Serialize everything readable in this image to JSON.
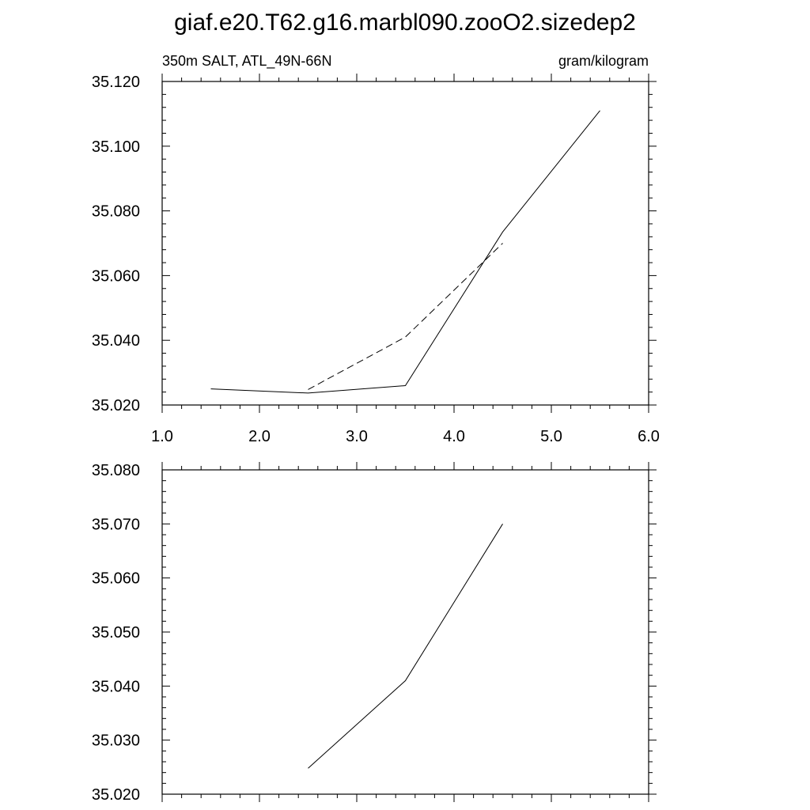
{
  "figure": {
    "title": "giaf.e20.T62.g16.marbl090.zooO2.sizedep2"
  },
  "chart_data": [
    {
      "type": "line",
      "subtitle_left": "350m SALT, ATL_49N-66N",
      "subtitle_right": "gram/kilogram",
      "xlim": [
        1.0,
        6.0
      ],
      "ylim": [
        35.02,
        35.12
      ],
      "xticks": [
        1.0,
        2.0,
        3.0,
        4.0,
        5.0,
        6.0
      ],
      "xtick_labels": [
        "1.0",
        "2.0",
        "3.0",
        "4.0",
        "5.0",
        "6.0"
      ],
      "yticks": [
        35.02,
        35.04,
        35.06,
        35.08,
        35.1,
        35.12
      ],
      "ytick_labels": [
        "35.020",
        "35.040",
        "35.060",
        "35.080",
        "35.100",
        "35.120"
      ],
      "grid": false,
      "series": [
        {
          "style": "solid",
          "x": [
            1.5,
            2.5,
            3.5,
            4.5,
            5.5
          ],
          "y": [
            35.025,
            35.0237,
            35.026,
            35.0735,
            35.111
          ]
        },
        {
          "style": "dashed",
          "x": [
            2.5,
            3.5,
            4.5
          ],
          "y": [
            35.0248,
            35.041,
            35.07
          ]
        }
      ]
    },
    {
      "type": "line",
      "xlim": [
        1.0,
        6.0
      ],
      "ylim": [
        35.02,
        35.08
      ],
      "xticks": [
        1.0,
        2.0,
        3.0,
        4.0,
        5.0,
        6.0
      ],
      "xtick_labels": [],
      "yticks": [
        35.02,
        35.03,
        35.04,
        35.05,
        35.06,
        35.07,
        35.08
      ],
      "ytick_labels": [
        "35.020",
        "35.030",
        "35.040",
        "35.050",
        "35.060",
        "35.070",
        "35.080"
      ],
      "grid": false,
      "series": [
        {
          "style": "solid",
          "x": [
            2.5,
            3.5,
            4.5
          ],
          "y": [
            35.0248,
            35.041,
            35.07
          ]
        }
      ]
    }
  ]
}
